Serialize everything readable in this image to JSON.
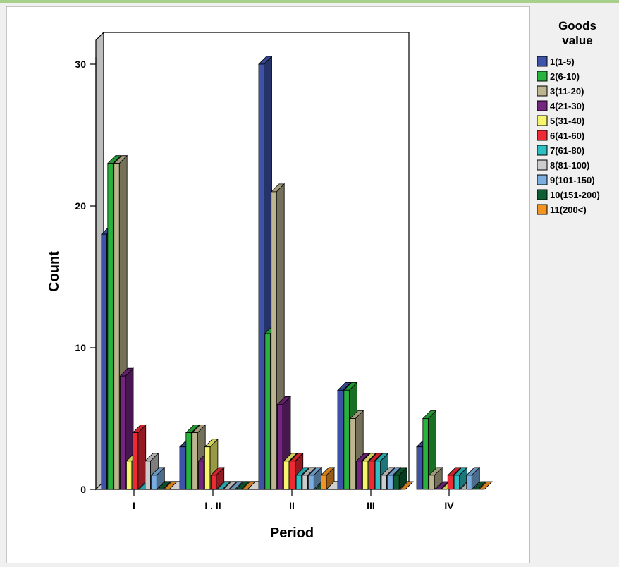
{
  "chart_data": {
    "type": "bar",
    "title": "",
    "xlabel": "Period",
    "ylabel": "Count",
    "ylim": [
      0,
      30
    ],
    "yticks": [
      0,
      10,
      20,
      30
    ],
    "grid": false,
    "legend_position": "right",
    "legend_title": "Goods value",
    "categories": [
      "I",
      "I . II",
      "II",
      "III",
      "IV"
    ],
    "series": [
      {
        "name": "1(1-5)",
        "color": "#3e53a8",
        "values": [
          18,
          3,
          30,
          7,
          3
        ]
      },
      {
        "name": "2(6-10)",
        "color": "#28b43c",
        "values": [
          23,
          4,
          11,
          7,
          5
        ]
      },
      {
        "name": "3(11-20)",
        "color": "#bcb58f",
        "values": [
          23,
          4,
          21,
          5,
          1
        ]
      },
      {
        "name": "4(21-30)",
        "color": "#73257f",
        "values": [
          8,
          2,
          6,
          2,
          0
        ]
      },
      {
        "name": "5(31-40)",
        "color": "#f7f56e",
        "values": [
          2,
          3,
          2,
          2,
          0
        ]
      },
      {
        "name": "6(41-60)",
        "color": "#ee2b35",
        "values": [
          4,
          1,
          2,
          2,
          1
        ]
      },
      {
        "name": "7(61-80)",
        "color": "#2ebfc4",
        "values": [
          0,
          0,
          1,
          2,
          1
        ]
      },
      {
        "name": "8(81-100)",
        "color": "#cccccc",
        "values": [
          2,
          0,
          1,
          1,
          0
        ]
      },
      {
        "name": "9(101-150)",
        "color": "#7aaee0",
        "values": [
          1,
          0,
          1,
          1,
          1
        ]
      },
      {
        "name": "10(151-200)",
        "color": "#0d5e32",
        "values": [
          0,
          0,
          0,
          1,
          0
        ]
      },
      {
        "name": "11(200<)",
        "color": "#f39322",
        "values": [
          0,
          0,
          1,
          0,
          0
        ]
      }
    ]
  }
}
